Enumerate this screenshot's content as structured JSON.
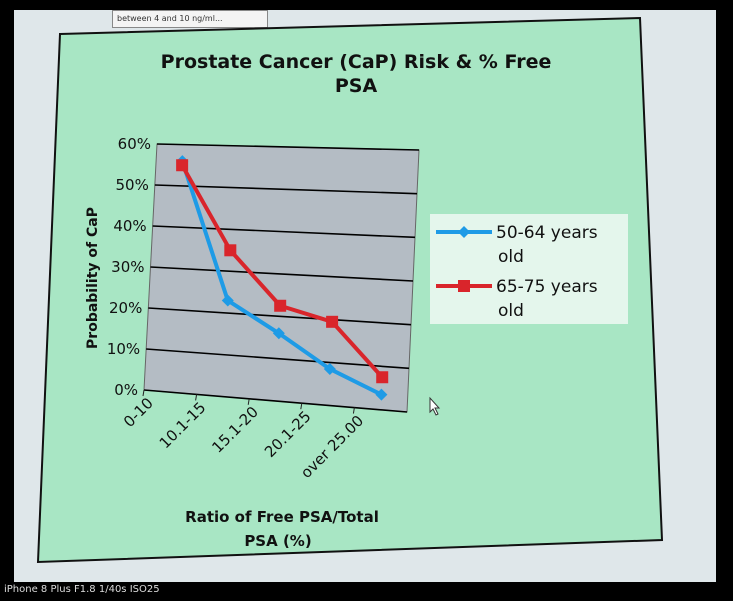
{
  "header_strip": {
    "text": "between 4 and 10 ng/ml..."
  },
  "photo_caption": "iPhone 8 Plus F1.8 1/40s ISO25",
  "chart_data": {
    "type": "line",
    "title_line1": "Prostate Cancer (CaP) Risk & % Free",
    "title_line2": "PSA",
    "xlabel_line1": "Ratio of  Free PSA/Total",
    "xlabel_line2": "PSA (%)",
    "ylabel": "Probability of CaP",
    "categories": [
      "0-10",
      "10.1-15",
      "15.1-20",
      "20.1-25",
      "over 25.00"
    ],
    "ylim": [
      0,
      60
    ],
    "yticks": [
      "0%",
      "10%",
      "20%",
      "30%",
      "40%",
      "50%",
      "60%"
    ],
    "grid": "horizontal",
    "legend_position": "right",
    "series": [
      {
        "name_line1": "50-64 years",
        "name_line2": "old",
        "color": "#1e9be6",
        "marker": "diamond",
        "values": [
          56,
          23,
          16,
          8.5,
          3.5
        ]
      },
      {
        "name_line1": "65-75 years",
        "name_line2": "old",
        "color": "#d9252b",
        "marker": "square",
        "values": [
          55,
          35,
          22.5,
          19.5,
          7.5
        ]
      }
    ],
    "colors": {
      "chart_bg": "#a8e6c4",
      "plot_bg": "#b4bcc4",
      "gridline": "#000000"
    }
  }
}
